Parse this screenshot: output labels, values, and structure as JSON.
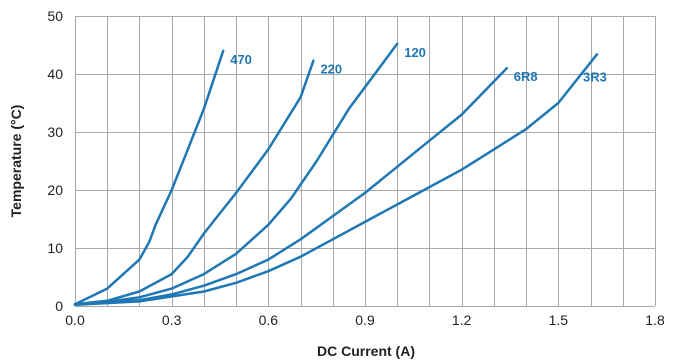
{
  "chart_data": {
    "type": "line",
    "title": "",
    "xlabel": "DC Current (A)",
    "ylabel": "Temperature (°C)",
    "xlim": [
      0,
      1.8
    ],
    "ylim": [
      0,
      50
    ],
    "x_ticks": [
      "0.0",
      "0.3",
      "0.6",
      "0.9",
      "1.2",
      "1.5",
      "1.8"
    ],
    "x_tick_values": [
      0,
      0.3,
      0.6,
      0.9,
      1.2,
      1.5,
      1.8
    ],
    "y_ticks": [
      "0",
      "10",
      "20",
      "30",
      "40",
      "50"
    ],
    "y_tick_values": [
      0,
      10,
      20,
      30,
      40,
      50
    ],
    "x_grid_step": 0.1,
    "grid": true,
    "legend": "none",
    "series": [
      {
        "name": "470",
        "color": "#1f77b4",
        "x": [
          0.0,
          0.1,
          0.15,
          0.2,
          0.23,
          0.25,
          0.3,
          0.35,
          0.4,
          0.46
        ],
        "y": [
          0.3,
          3.0,
          5.5,
          8.0,
          11.0,
          14.0,
          20.0,
          27.0,
          34.0,
          44.0
        ]
      },
      {
        "name": "220",
        "color": "#1f77b4",
        "x": [
          0.0,
          0.1,
          0.2,
          0.3,
          0.35,
          0.4,
          0.5,
          0.6,
          0.7,
          0.74
        ],
        "y": [
          0.3,
          0.9,
          2.5,
          5.5,
          8.5,
          12.5,
          19.5,
          27.0,
          36.0,
          42.3
        ]
      },
      {
        "name": "120",
        "color": "#1f77b4",
        "x": [
          0.0,
          0.1,
          0.2,
          0.3,
          0.4,
          0.5,
          0.6,
          0.67,
          0.75,
          0.85,
          1.0
        ],
        "y": [
          0.3,
          0.7,
          1.5,
          3.0,
          5.5,
          9.0,
          14.0,
          18.5,
          25.0,
          34.0,
          45.2
        ]
      },
      {
        "name": "6R8",
        "color": "#1f77b4",
        "x": [
          0.0,
          0.2,
          0.3,
          0.4,
          0.5,
          0.6,
          0.7,
          0.8,
          0.9,
          1.0,
          1.1,
          1.2,
          1.34
        ],
        "y": [
          0.2,
          1.0,
          2.0,
          3.5,
          5.5,
          8.0,
          11.5,
          15.5,
          19.5,
          24.0,
          28.5,
          33.0,
          41.0
        ]
      },
      {
        "name": "3R3",
        "color": "#1f77b4",
        "x": [
          0.0,
          0.2,
          0.4,
          0.5,
          0.6,
          0.7,
          0.8,
          0.9,
          1.0,
          1.1,
          1.2,
          1.3,
          1.4,
          1.5,
          1.62
        ],
        "y": [
          0.2,
          0.8,
          2.5,
          4.0,
          6.0,
          8.5,
          11.5,
          14.5,
          17.5,
          20.5,
          23.5,
          27.0,
          30.5,
          35.0,
          43.4
        ]
      }
    ]
  },
  "colors": {
    "line": "#1f77b4",
    "label": "#1f77b4",
    "grid": "#a9a9a9",
    "text": "#222222"
  }
}
